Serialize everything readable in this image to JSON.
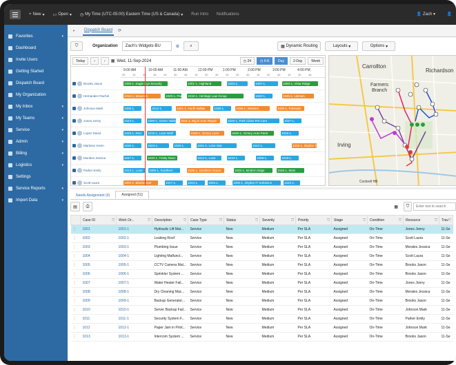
{
  "topbar": {
    "new_label": "New",
    "open_label": "Open",
    "timezone_label": "My Time (UTC-05:00) Eastern Time (US & Canada)",
    "run_intro_label": "Run Intro",
    "notifications_label": "Notifications",
    "user_label": "Zach"
  },
  "sidebar": {
    "items": [
      {
        "label": "Favorites",
        "icon": "star-icon",
        "chev": true
      },
      {
        "label": "Dashboard",
        "icon": "dashboard-icon",
        "chev": false
      },
      {
        "label": "Invite Users",
        "icon": "invite-icon",
        "chev": false
      },
      {
        "label": "Getting Started",
        "icon": "flag-icon",
        "chev": false
      },
      {
        "label": "Dispatch Board",
        "icon": "dispatch-icon",
        "chev": false
      },
      {
        "label": "My Organization",
        "icon": "org-icon",
        "chev": false
      },
      {
        "label": "My Inbox",
        "icon": "inbox-icon",
        "chev": true
      },
      {
        "label": "My Teams",
        "icon": "teams-icon",
        "chev": true
      },
      {
        "label": "Service",
        "icon": "service-icon",
        "chev": true
      },
      {
        "label": "Admin",
        "icon": "admin-icon",
        "chev": true
      },
      {
        "label": "Billing",
        "icon": "billing-icon",
        "chev": true
      },
      {
        "label": "Logistics",
        "icon": "logistics-icon",
        "chev": true
      },
      {
        "label": "Settings",
        "icon": "gear-icon",
        "chev": false
      },
      {
        "label": "Service Reports",
        "icon": "report-icon",
        "chev": true
      },
      {
        "label": "Import Data",
        "icon": "import-icon",
        "chev": true
      }
    ]
  },
  "tabs": {
    "dispatch_board": "Dispatch Board"
  },
  "toolbar": {
    "org_label": "Organization",
    "org_value": "Zach's Widgets-BU",
    "dynamic_routing": "Dynamic Routing",
    "layouts": "Layouts",
    "options": "Options"
  },
  "schedule": {
    "today": "Today",
    "date": "Wed, 11-Sep-2024",
    "mode_24": "24",
    "mode_68": "6-8",
    "day": "Day",
    "two_day": "2-Day",
    "week": "Week",
    "ticks": [
      "9:00 AM",
      "10:00 AM",
      "11:00 AM",
      "12:00 PM",
      "1:00 PM",
      "2:00 PM",
      "3:00 PM",
      "4:00 PM"
    ],
    "subticks": [
      "30",
      "15",
      "30",
      "45",
      "15",
      "30",
      "45",
      "15",
      "30",
      "45",
      "15",
      "30",
      "45",
      "15",
      "30",
      "45",
      "15",
      "30",
      "45"
    ],
    "resources": [
      {
        "name": "Brooks Jason",
        "bars": [
          {
            "l": 4,
            "w": 64,
            "c": "#2a9d3e",
            "t": "1005-1, Eagle Eye Security"
          },
          {
            "l": 96,
            "w": 50,
            "c": "#2a9d3e",
            "t": "1001-1, Highland"
          },
          {
            "l": 154,
            "w": 30,
            "c": "#29a7e1",
            "t": "1034-1,"
          },
          {
            "l": 194,
            "w": 34,
            "c": "#29a7e1",
            "t": "1007-1,"
          },
          {
            "l": 234,
            "w": 52,
            "c": "#2a9d3e",
            "t": "1050-1, Vista Ridge"
          }
        ]
      },
      {
        "name": "Hernandez Rachel",
        "bars": [
          {
            "l": 4,
            "w": 54,
            "c": "#f28b30",
            "t": "1016-1, Maverick"
          },
          {
            "l": 64,
            "w": 24,
            "c": "#2a9d3e",
            "t": "1020-1, Park"
          },
          {
            "l": 96,
            "w": 82,
            "c": "#2a9d3e",
            "t": "1018-1, Heritage Law Group"
          },
          {
            "l": 194,
            "w": 26,
            "c": "#29a7e1",
            "t": "1040-1,"
          },
          {
            "l": 234,
            "w": 46,
            "c": "#f28b30",
            "t": "1045-1, Uptown"
          }
        ]
      },
      {
        "name": "Johnson Mark",
        "bars": [
          {
            "l": 4,
            "w": 26,
            "c": "#29a7e1",
            "t": "1009-1,"
          },
          {
            "l": 44,
            "w": 30,
            "c": "#29a7e1",
            "t": "1012-1,"
          },
          {
            "l": 80,
            "w": 50,
            "c": "#f28b30",
            "t": "1021-1, North Dallas"
          },
          {
            "l": 134,
            "w": 26,
            "c": "#29a7e1",
            "t": "1038-1,"
          },
          {
            "l": 166,
            "w": 50,
            "c": "#f28b30",
            "t": "1025-1, Western"
          },
          {
            "l": 226,
            "w": 40,
            "c": "#f28b30",
            "t": "1026-1, Parkside"
          }
        ]
      },
      {
        "name": "Jones Jonny",
        "bars": [
          {
            "l": 4,
            "w": 26,
            "c": "#29a7e1",
            "t": "1043-1,"
          },
          {
            "l": 38,
            "w": 42,
            "c": "#29a7e1",
            "t": "1006-1, Green Valley"
          },
          {
            "l": 86,
            "w": 58,
            "c": "#f28b30",
            "t": "1011-1, Big D Auto Repair"
          },
          {
            "l": 154,
            "w": 76,
            "c": "#29a7e1",
            "t": "1025-1, Park Cities Pet Care"
          },
          {
            "l": 236,
            "w": 26,
            "c": "#29a7e1",
            "t": "1037-1,"
          }
        ]
      },
      {
        "name": "Lopez David",
        "bars": [
          {
            "l": 4,
            "w": 30,
            "c": "#29a7e1",
            "t": "1029-1, Red"
          },
          {
            "l": 38,
            "w": 42,
            "c": "#29a7e1",
            "t": "1015-1, Lone Wolf"
          },
          {
            "l": 100,
            "w": 50,
            "c": "#f28b30",
            "t": "1048-1, Victory Lane"
          },
          {
            "l": 160,
            "w": 62,
            "c": "#2a9d3e",
            "t": "1045-1, Victory Auto Parts"
          },
          {
            "l": 232,
            "w": 26,
            "c": "#29a7e1",
            "t": "1028-1,"
          }
        ]
      },
      {
        "name": "Martinez Kevin",
        "bars": [
          {
            "l": 4,
            "w": 26,
            "c": "#29a7e1",
            "t": "1030-1,"
          },
          {
            "l": 38,
            "w": 32,
            "c": "#29a7e1",
            "t": "1023-1,"
          },
          {
            "l": 76,
            "w": 26,
            "c": "#29a7e1",
            "t": "1049-1,"
          },
          {
            "l": 110,
            "w": 58,
            "c": "#29a7e1",
            "t": "1031-1, Lone Star"
          },
          {
            "l": 190,
            "w": 34,
            "c": "#29a7e1",
            "t": "1042-1,"
          },
          {
            "l": 248,
            "w": 36,
            "c": "#f28b30",
            "t": "1036-1, Skyline Tax"
          }
        ]
      },
      {
        "name": "Morales Jessica",
        "bars": [
          {
            "l": 4,
            "w": 26,
            "c": "#29a7e1",
            "t": "1047-1,"
          },
          {
            "l": 38,
            "w": 44,
            "c": "#2a9d3e",
            "t": "1040-1, Trinity River"
          },
          {
            "l": 110,
            "w": 36,
            "c": "#29a7e1",
            "t": "1014-1, Lone"
          },
          {
            "l": 154,
            "w": 26,
            "c": "#29a7e1",
            "t": "1010-1,"
          },
          {
            "l": 196,
            "w": 26,
            "c": "#29a7e1",
            "t": "1008-1,"
          },
          {
            "l": 232,
            "w": 26,
            "c": "#29a7e1",
            "t": "1019-1,"
          }
        ]
      },
      {
        "name": "Parker Emily",
        "bars": [
          {
            "l": 4,
            "w": 32,
            "c": "#29a7e1",
            "t": "1013-1, Lone"
          },
          {
            "l": 40,
            "w": 46,
            "c": "#29a7e1",
            "t": "1006-1, Southern"
          },
          {
            "l": 96,
            "w": 54,
            "c": "#f28b30",
            "t": "1035-1, Southern Grace"
          },
          {
            "l": 164,
            "w": 56,
            "c": "#2a9d3e",
            "t": "1020-1, Modern Edge"
          },
          {
            "l": 226,
            "w": 40,
            "c": "#2a9d3e",
            "t": "1046-1, Main"
          }
        ]
      },
      {
        "name": "Scott Laura",
        "bars": [
          {
            "l": 4,
            "w": 50,
            "c": "#f28b30",
            "t": "1002-1, Bluebonnet"
          },
          {
            "l": 64,
            "w": 26,
            "c": "#29a7e1",
            "t": "1017-1,"
          },
          {
            "l": 96,
            "w": 26,
            "c": "#29a7e1",
            "t": "1044-1,"
          },
          {
            "l": 126,
            "w": 26,
            "c": "#29a7e1",
            "t": "1004-1,"
          },
          {
            "l": 162,
            "w": 70,
            "c": "#29a7e1",
            "t": "1030-1, Skyline IT Solutions"
          },
          {
            "l": 236,
            "w": 24,
            "c": "#29a7e1",
            "t": "1022-1,"
          }
        ]
      }
    ]
  },
  "map": {
    "places": {
      "carrollton": "Carrollton",
      "richardson": "Richardson",
      "farmers": "Farmers",
      "branch": "Branch",
      "irving": "Irving",
      "cockrell": "Cockrell Hill"
    }
  },
  "bottom_tabs": {
    "needs_assignment": "Needs Assignment (0)",
    "assigned": "Assigned (51)"
  },
  "grid": {
    "filter_placeholder": "Enter text to search",
    "columns": [
      "Case ID",
      "Work Or...",
      "Description",
      "Case Type",
      "Status",
      "Severity",
      "Priority",
      "Stage",
      "Condition",
      "Resource",
      "Trav"
    ],
    "rows": [
      [
        "1001",
        "1001-1",
        "Hydraulic Lift Mal...",
        "Service",
        "New",
        "Medium",
        "Per SLA",
        "Assigned",
        "On-Time",
        "Jones Jonny",
        "11-Se"
      ],
      [
        "1002",
        "1002-1",
        "Leaking Roof",
        "Service",
        "New",
        "Medium",
        "Per SLA",
        "Assigned",
        "On-Time",
        "Scott Laura",
        "11-Se"
      ],
      [
        "1003",
        "1003-1",
        "Plumbing Issue",
        "Service",
        "New",
        "Medium",
        "Per SLA",
        "Assigned",
        "On-Time",
        "Morales Jessica",
        "11-Se"
      ],
      [
        "1004",
        "1004-1",
        "Lighting Malfunct...",
        "Service",
        "New",
        "Medium",
        "Per SLA",
        "Assigned",
        "On-Time",
        "Scott Laura",
        "11-Se"
      ],
      [
        "1005",
        "1005-1",
        "CCTV Camera Mal...",
        "Service",
        "New",
        "Medium",
        "Per SLA",
        "Assigned",
        "On-Time",
        "Brooks Jason",
        "11-Se"
      ],
      [
        "1006",
        "1006-1",
        "Sprinkler System ...",
        "Service",
        "New",
        "Medium",
        "Per SLA",
        "Assigned",
        "On-Time",
        "Brooks Jason",
        "11-Se"
      ],
      [
        "1007",
        "1007-1",
        "Water Heater Fail...",
        "Service",
        "New",
        "Medium",
        "Per SLA",
        "Assigned",
        "On-Time",
        "Jones Jonny",
        "11-Se"
      ],
      [
        "1008",
        "1008-1",
        "Dry Cleaning Mac...",
        "Service",
        "New",
        "Medium",
        "Per SLA",
        "Assigned",
        "On-Time",
        "Morales Jessica",
        "11-Se"
      ],
      [
        "1009",
        "1009-1",
        "Backup Generator...",
        "Service",
        "New",
        "Medium",
        "Per SLA",
        "Assigned",
        "On-Time",
        "Brooks Jason",
        "11-Se"
      ],
      [
        "1010",
        "1010-1",
        "Server Backup Fail...",
        "Service",
        "New",
        "Medium",
        "Per SLA",
        "Assigned",
        "On-Time",
        "Johnson Mark",
        "11-Se"
      ],
      [
        "1011",
        "1011-1",
        "Security System F...",
        "Service",
        "New",
        "Medium",
        "Per SLA",
        "Assigned",
        "On-Time",
        "Parker Emily",
        "11-Se"
      ],
      [
        "1012",
        "1012-1",
        "Paper Jam in Print...",
        "Service",
        "New",
        "Medium",
        "Per SLA",
        "Assigned",
        "On-Time",
        "Johnson Mark",
        "11-Se"
      ],
      [
        "1013",
        "1013-1",
        "Intercom System ...",
        "Service",
        "New",
        "Medium",
        "Per SLA",
        "Assigned",
        "On-Time",
        "Brooks Jason",
        "11-Se"
      ]
    ]
  }
}
